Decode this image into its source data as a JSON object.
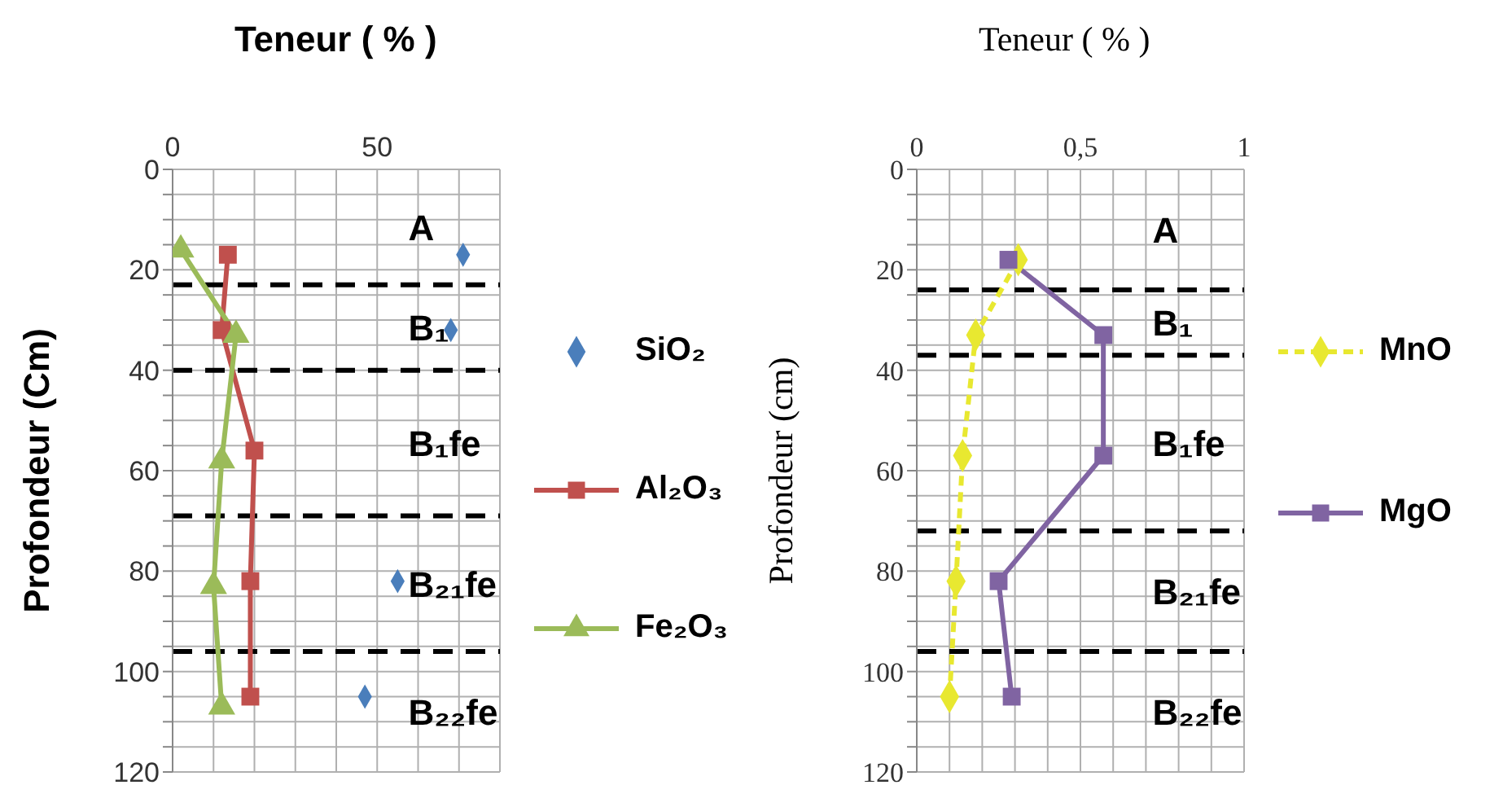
{
  "chart_data": [
    {
      "type": "line",
      "xlabel": "Teneur ( % )",
      "ylabel": "Profondeur (Cm)",
      "xlim": [
        0,
        80
      ],
      "xticks": [
        0,
        {
          "value": 10,
          "label": null
        },
        {
          "value": 20,
          "label": null
        },
        {
          "value": 30,
          "label": null
        },
        {
          "value": 40,
          "label": null
        },
        50,
        {
          "value": 60,
          "label": null
        },
        {
          "value": 70,
          "label": null
        },
        {
          "value": 80,
          "label": null
        }
      ],
      "ylim": [
        120,
        0
      ],
      "yticks": [
        0,
        {
          "value": 5,
          "label": null
        },
        {
          "value": 10,
          "label": null
        },
        {
          "value": 15,
          "label": null
        },
        20,
        {
          "value": 25,
          "label": null
        },
        {
          "value": 30,
          "label": null
        },
        {
          "value": 35,
          "label": null
        },
        40,
        {
          "value": 45,
          "label": null
        },
        {
          "value": 50,
          "label": null
        },
        {
          "value": 55,
          "label": null
        },
        60,
        {
          "value": 65,
          "label": null
        },
        {
          "value": 70,
          "label": null
        },
        {
          "value": 75,
          "label": null
        },
        80,
        {
          "value": 85,
          "label": null
        },
        {
          "value": 90,
          "label": null
        },
        {
          "value": 95,
          "label": null
        },
        100,
        {
          "value": 105,
          "label": null
        },
        {
          "value": 110,
          "label": null
        },
        {
          "value": 115,
          "label": null
        },
        120
      ],
      "grid": true,
      "legend": "right",
      "series": [
        {
          "name": "SiO₂",
          "type": "scatter",
          "marker": "diamond",
          "color": "#4a7ebb",
          "x": [
            71,
            68,
            55,
            47
          ],
          "values": [
            17,
            32,
            82,
            105
          ]
        },
        {
          "name": "Al₂O₃",
          "color": "#c0504d",
          "marker": "square",
          "x": [
            13.5,
            12,
            20,
            19,
            19
          ],
          "values": [
            17,
            32,
            56,
            82,
            105
          ]
        },
        {
          "name": "Fe₂O₃",
          "color": "#9bbb59",
          "marker": "triangle",
          "x": [
            2,
            15.5,
            12,
            10,
            12
          ],
          "values": [
            16,
            33,
            58,
            83,
            107
          ]
        }
      ],
      "ref_lines": [
        {
          "axis": "y",
          "value": 23,
          "line_style": "dashed",
          "color": "#000000"
        },
        {
          "axis": "y",
          "value": 40,
          "line_style": "dashed",
          "color": "#000000"
        },
        {
          "axis": "y",
          "value": 69,
          "line_style": "dashed",
          "color": "#000000"
        },
        {
          "axis": "y",
          "value": 96,
          "line_style": "dashed",
          "color": "#000000"
        }
      ],
      "annotations": [
        "A",
        "B₁",
        "B₁fe",
        "B₂₁fe",
        "B₂₂fe"
      ]
    },
    {
      "type": "line",
      "xlabel": "Teneur ( % )",
      "ylabel": "Profondeur (cm)",
      "xlim": [
        0,
        1
      ],
      "xticks": [
        0,
        {
          "value": 0.1,
          "label": null
        },
        {
          "value": 0.2,
          "label": null
        },
        {
          "value": 0.3,
          "label": null
        },
        {
          "value": 0.4,
          "label": null
        },
        {
          "value": 0.5,
          "label": "0,5"
        },
        {
          "value": 0.6,
          "label": null
        },
        {
          "value": 0.7,
          "label": null
        },
        {
          "value": 0.8,
          "label": null
        },
        {
          "value": 0.9,
          "label": null
        },
        1
      ],
      "ylim": [
        120,
        0
      ],
      "yticks": [
        0,
        {
          "value": 5,
          "label": null
        },
        {
          "value": 10,
          "label": null
        },
        {
          "value": 15,
          "label": null
        },
        20,
        {
          "value": 25,
          "label": null
        },
        {
          "value": 30,
          "label": null
        },
        {
          "value": 35,
          "label": null
        },
        40,
        {
          "value": 45,
          "label": null
        },
        {
          "value": 50,
          "label": null
        },
        {
          "value": 55,
          "label": null
        },
        60,
        {
          "value": 65,
          "label": null
        },
        {
          "value": 70,
          "label": null
        },
        {
          "value": 75,
          "label": null
        },
        80,
        {
          "value": 85,
          "label": null
        },
        {
          "value": 90,
          "label": null
        },
        {
          "value": 95,
          "label": null
        },
        100,
        {
          "value": 105,
          "label": null
        },
        {
          "value": 110,
          "label": null
        },
        {
          "value": 115,
          "label": null
        },
        120
      ],
      "grid": true,
      "legend": "right",
      "series": [
        {
          "name": "MnO",
          "color": "#e8e830",
          "marker": "diamond",
          "line_style": "dashed",
          "x": [
            0.31,
            0.18,
            0.14,
            0.12,
            0.1
          ],
          "values": [
            18,
            33,
            57,
            82,
            105
          ]
        },
        {
          "name": "MgO",
          "color": "#8064a2",
          "marker": "square",
          "x": [
            0.28,
            0.57,
            0.57,
            0.25,
            0.29
          ],
          "values": [
            18,
            33,
            57,
            82,
            105
          ]
        }
      ],
      "ref_lines": [
        {
          "axis": "y",
          "value": 24,
          "line_style": "dashed",
          "color": "#000000"
        },
        {
          "axis": "y",
          "value": 37,
          "line_style": "dashed",
          "color": "#000000"
        },
        {
          "axis": "y",
          "value": 72,
          "line_style": "dashed",
          "color": "#000000"
        },
        {
          "axis": "y",
          "value": 96,
          "line_style": "dashed",
          "color": "#000000"
        }
      ],
      "annotations": [
        "A",
        "B₁",
        "B₁fe",
        "B₂₁fe",
        "B₂₂fe"
      ]
    }
  ]
}
